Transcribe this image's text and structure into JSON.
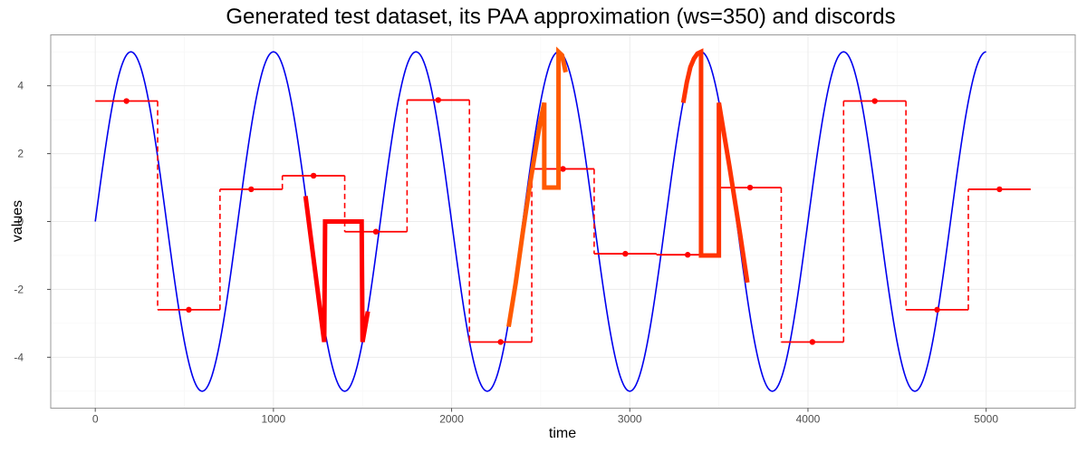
{
  "chart_data": {
    "type": "line",
    "title": "Generated test dataset, its PAA approximation (ws=350) and discords",
    "xlabel": "time",
    "ylabel": "values",
    "xlim": [
      -250,
      5500
    ],
    "ylim": [
      -5.5,
      5.5
    ],
    "x_ticks": [
      0,
      1000,
      2000,
      3000,
      4000,
      5000
    ],
    "x_tick_labels": [
      "0",
      "1000",
      "2000",
      "3000",
      "4000",
      "5000"
    ],
    "y_ticks": [
      -4,
      -2,
      0,
      2,
      4
    ],
    "y_tick_labels": [
      "-4",
      "-2",
      "0",
      "2",
      "4"
    ],
    "grid": true,
    "legend": "none",
    "colors": {
      "signal": "#0000ee",
      "paa": "#ff0000",
      "paa_points": "#ff0000",
      "discord_1": "#ff0000",
      "discord_2": "#ff5a00",
      "discord_3": "#ff3300"
    },
    "series": [
      {
        "kind": "signal",
        "function": "sine",
        "amplitude": 5,
        "period": 800,
        "x_range": [
          0,
          5000
        ],
        "color": "#0000ee"
      },
      {
        "kind": "paa",
        "window": 350,
        "segments": [
          {
            "x0": 0,
            "x1": 350,
            "value": 3.55
          },
          {
            "x0": 350,
            "x1": 700,
            "value": -2.6
          },
          {
            "x0": 700,
            "x1": 1050,
            "value": 0.95
          },
          {
            "x0": 1050,
            "x1": 1400,
            "value": 1.35
          },
          {
            "x0": 1400,
            "x1": 1750,
            "value": -0.3
          },
          {
            "x0": 1750,
            "x1": 2100,
            "value": 3.58
          },
          {
            "x0": 2100,
            "x1": 2450,
            "value": -3.55
          },
          {
            "x0": 2450,
            "x1": 2800,
            "value": 1.55
          },
          {
            "x0": 2800,
            "x1": 3150,
            "value": -0.95
          },
          {
            "x0": 3150,
            "x1": 3500,
            "value": -0.98
          },
          {
            "x0": 3500,
            "x1": 3850,
            "value": 1.0
          },
          {
            "x0": 3850,
            "x1": 4200,
            "value": -3.55
          },
          {
            "x0": 4200,
            "x1": 4550,
            "value": 3.55
          },
          {
            "x0": 4550,
            "x1": 4900,
            "value": -2.6
          },
          {
            "x0": 4900,
            "x1": 5250,
            "value": 0.95
          }
        ],
        "points_x": [
          175,
          525,
          875,
          1225,
          1575,
          1925,
          2275,
          2625,
          2975,
          3325,
          3675,
          4025,
          4375,
          4725,
          5075
        ],
        "color": "#ff0000"
      },
      {
        "kind": "discord",
        "rank": 1,
        "color": "#ff0000",
        "points": [
          [
            1180,
            0.75
          ],
          [
            1285,
            -3.55
          ],
          [
            1290,
            0.0
          ],
          [
            1495,
            0.0
          ],
          [
            1500,
            -3.55
          ],
          [
            1530,
            -2.65
          ]
        ]
      },
      {
        "kind": "discord",
        "rank": 2,
        "color": "#ff5a00",
        "points": [
          [
            2320,
            -3.1
          ],
          [
            2360,
            -1.8
          ],
          [
            2400,
            -0.3
          ],
          [
            2440,
            1.1
          ],
          [
            2480,
            2.4
          ],
          [
            2500,
            3.0
          ],
          [
            2520,
            3.5
          ],
          [
            2520,
            1.0
          ],
          [
            2600,
            1.0
          ],
          [
            2600,
            5.0
          ],
          [
            2620,
            4.9
          ],
          [
            2640,
            4.4
          ]
        ]
      },
      {
        "kind": "discord",
        "rank": 3,
        "color": "#ff3300",
        "points": [
          [
            3300,
            3.5
          ],
          [
            3320,
            4.1
          ],
          [
            3340,
            4.55
          ],
          [
            3360,
            4.8
          ],
          [
            3380,
            4.95
          ],
          [
            3400,
            5.0
          ],
          [
            3400,
            -1.0
          ],
          [
            3500,
            -1.0
          ],
          [
            3500,
            3.5
          ],
          [
            3560,
            1.6
          ],
          [
            3620,
            -0.4
          ],
          [
            3660,
            -1.8
          ]
        ]
      }
    ]
  }
}
